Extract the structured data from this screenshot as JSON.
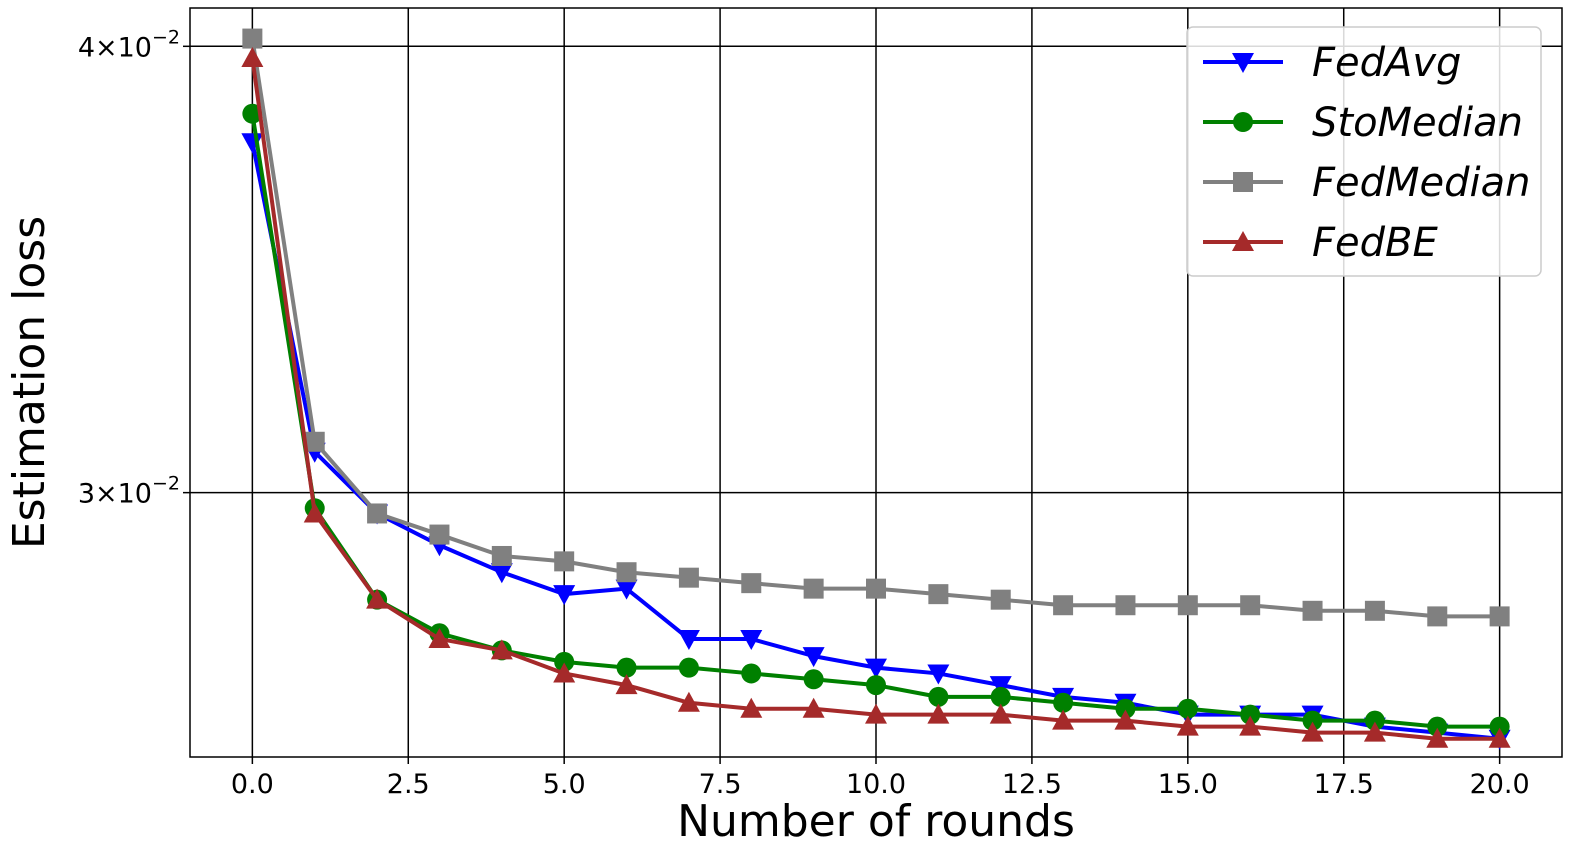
{
  "chart_data": {
    "type": "line",
    "xlabel": "Number of rounds",
    "ylabel": "Estimation loss",
    "xlim": [
      -1.0,
      21.0
    ],
    "ylim": [
      0.0253,
      0.041
    ],
    "yscale": "log",
    "grid": true,
    "legend_position": "top-right",
    "xticks": [
      0.0,
      2.5,
      5.0,
      7.5,
      10.0,
      12.5,
      15.0,
      17.5,
      20.0
    ],
    "xtick_labels": [
      "0.0",
      "2.5",
      "5.0",
      "7.5",
      "10.0",
      "12.5",
      "15.0",
      "17.5",
      "20.0"
    ],
    "yticks": [
      {
        "value": 0.04,
        "base": "4×10",
        "exp": "−2"
      },
      {
        "value": 0.03,
        "base": "3×10",
        "exp": "−2"
      }
    ],
    "x": [
      0,
      1,
      2,
      3,
      4,
      5,
      6,
      7,
      8,
      9,
      10,
      11,
      12,
      13,
      14,
      15,
      16,
      17,
      18,
      19,
      20
    ],
    "series": [
      {
        "name": "FedAvg",
        "color": "#0000ff",
        "marker": "triangle-down",
        "values": [
          0.0376,
          0.0308,
          0.0296,
          0.029,
          0.0285,
          0.0281,
          0.0282,
          0.0273,
          0.0273,
          0.027,
          0.0268,
          0.0267,
          0.0265,
          0.0263,
          0.0262,
          0.026,
          0.026,
          0.026,
          0.0258,
          0.0257,
          0.0256
        ]
      },
      {
        "name": "StoMedian",
        "color": "#008000",
        "marker": "circle",
        "values": [
          0.0383,
          0.0297,
          0.028,
          0.0274,
          0.0271,
          0.0269,
          0.0268,
          0.0268,
          0.0267,
          0.0266,
          0.0265,
          0.0263,
          0.0263,
          0.0262,
          0.0261,
          0.0261,
          0.026,
          0.0259,
          0.0259,
          0.0258,
          0.0258
        ]
      },
      {
        "name": "FedMedian",
        "color": "#808080",
        "marker": "square",
        "values": [
          0.0402,
          0.031,
          0.0296,
          0.0292,
          0.0288,
          0.0287,
          0.0285,
          0.0284,
          0.0283,
          0.0282,
          0.0282,
          0.0281,
          0.028,
          0.0279,
          0.0279,
          0.0279,
          0.0279,
          0.0278,
          0.0278,
          0.0277,
          0.0277
        ]
      },
      {
        "name": "FedBE",
        "color": "#a52a2a",
        "marker": "triangle-up",
        "values": [
          0.0397,
          0.0296,
          0.028,
          0.0273,
          0.0271,
          0.0267,
          0.0265,
          0.0262,
          0.0261,
          0.0261,
          0.026,
          0.026,
          0.026,
          0.0259,
          0.0259,
          0.0258,
          0.0258,
          0.0257,
          0.0257,
          0.0256,
          0.0256
        ]
      }
    ]
  }
}
